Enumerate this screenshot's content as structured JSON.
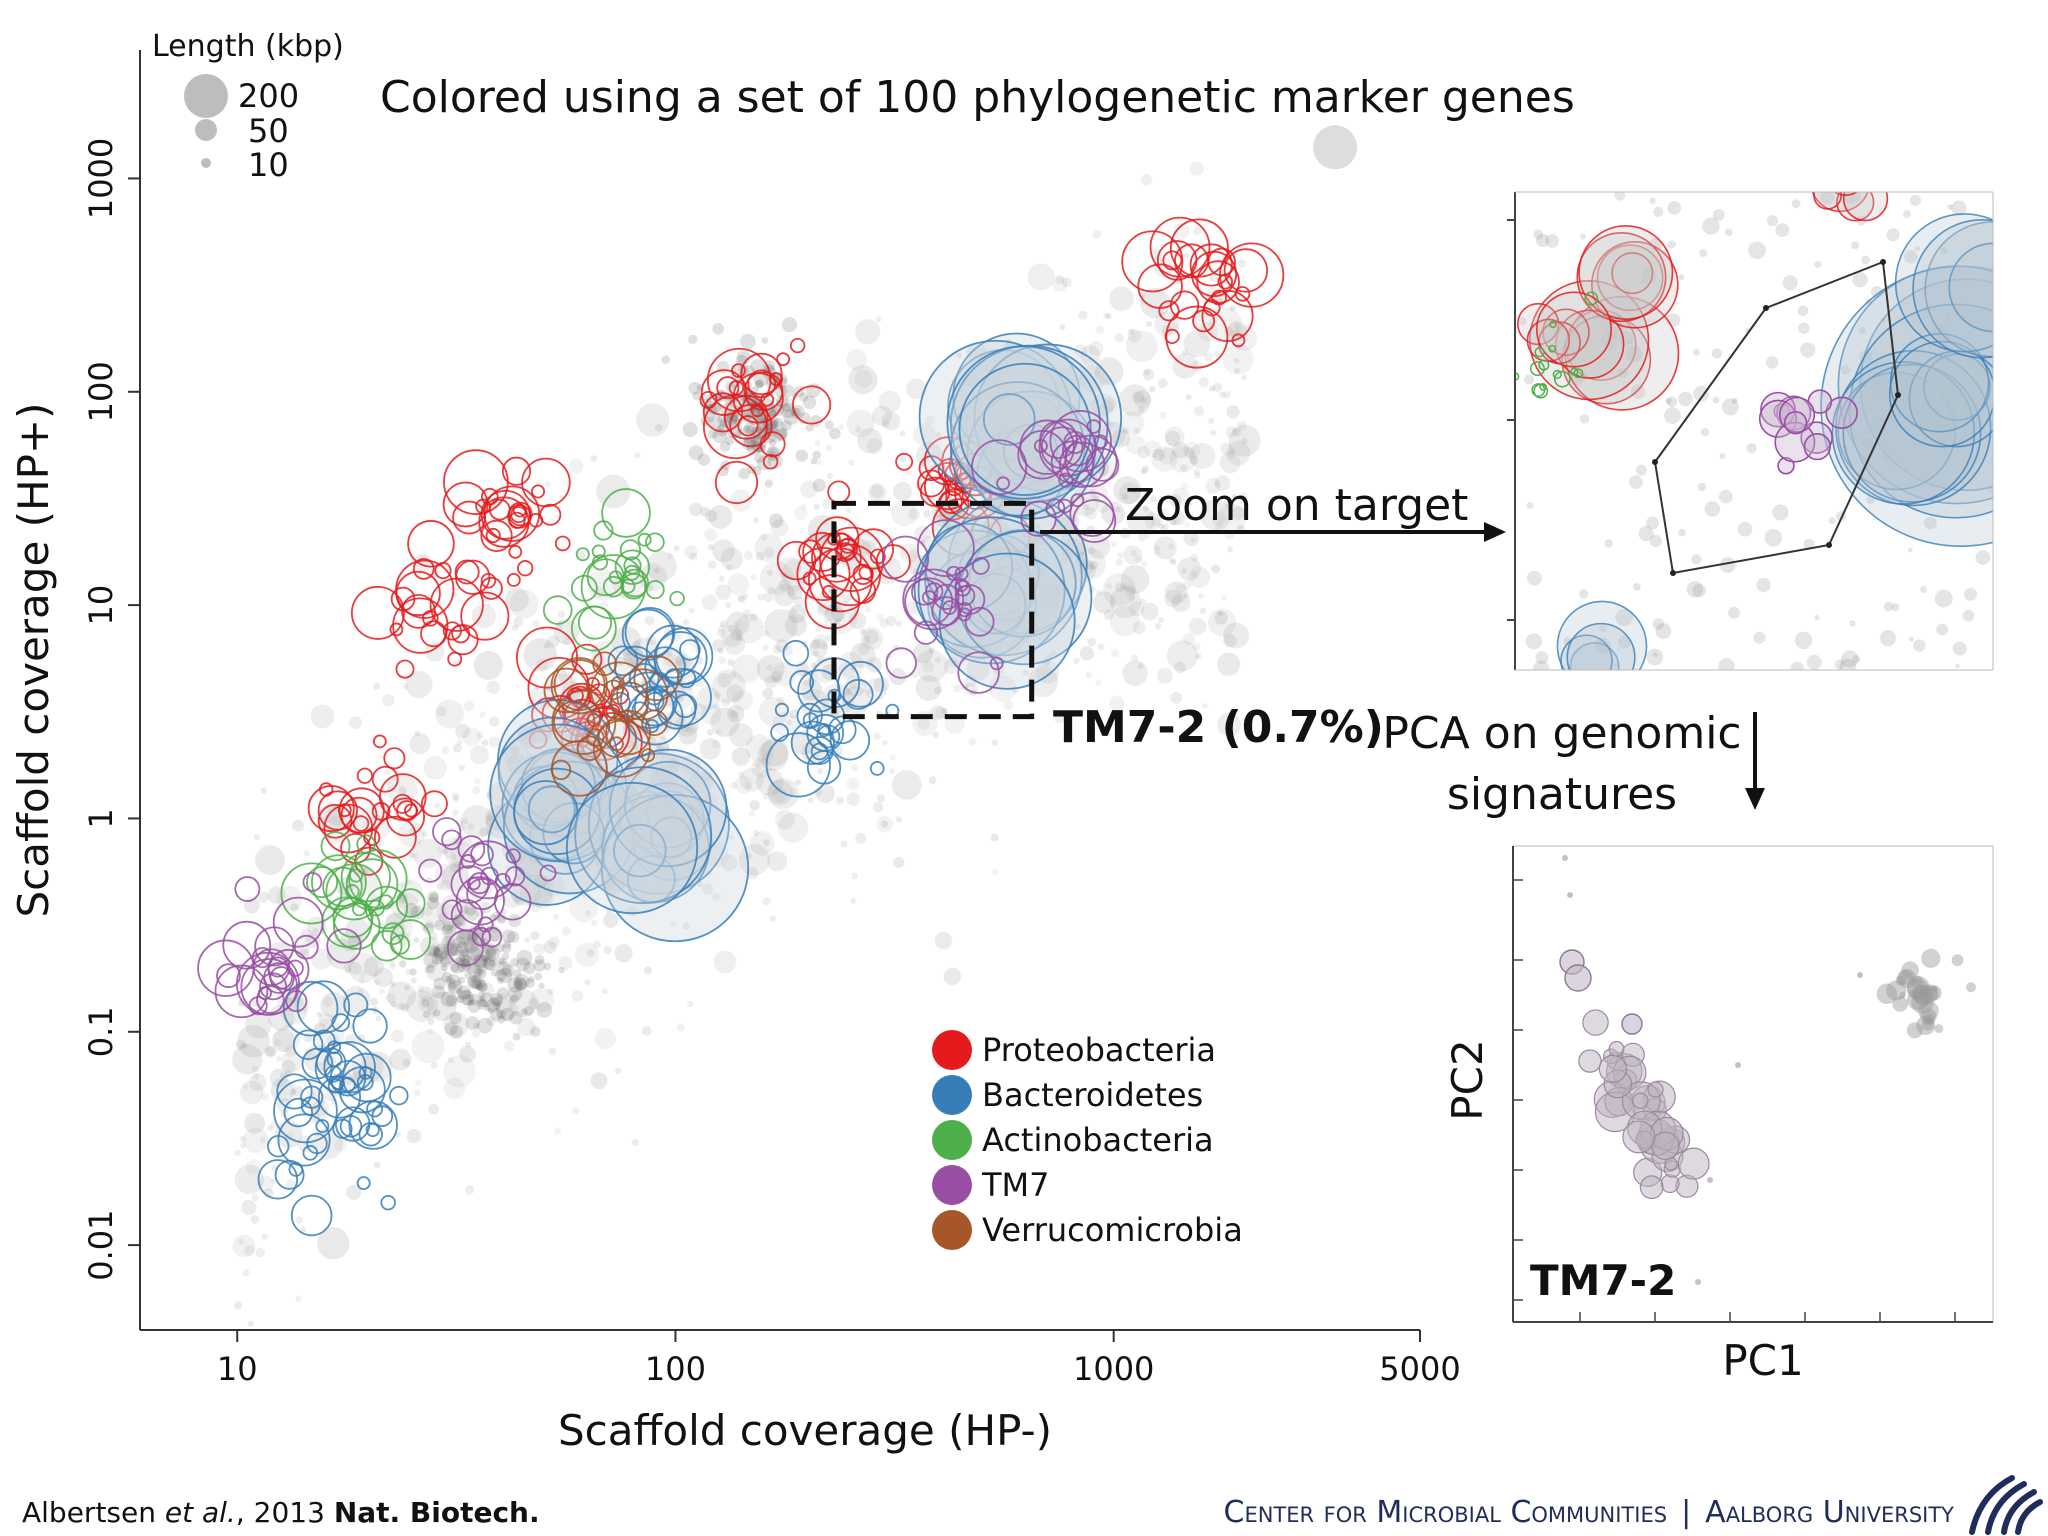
{
  "slide": {
    "heading": "Colored using a set of 100 phylogenetic marker genes",
    "zoom_label": "Zoom on target",
    "target_label": "TM7-2 (0.7%)",
    "pca_label_line1": "PCA on genomic",
    "pca_label_line2": "signatures",
    "citation_author": "Albertsen ",
    "citation_etal": "et al.",
    "citation_year": ", 2013 ",
    "citation_journal": "Nat. Biotech.",
    "footer_center": "Center for Microbial Communities",
    "footer_sep": "|",
    "footer_univ": "Aalborg University",
    "logo_icon": "aalborg-university-wave-logo"
  },
  "colors": {
    "Proteobacteria": "#e41a1c",
    "Bacteroidetes": "#377eb8",
    "Actinobacteria": "#4daf4a",
    "TM7": "#984ea3",
    "Verrucomicrobia": "#a65628",
    "background": "#9a9a9a",
    "footer_text": "#1f2d5a"
  },
  "chart_data": [
    {
      "type": "scatter",
      "xlabel": "Scaffold coverage (HP-)",
      "ylabel": "Scaffold coverage (HP+)",
      "x_scale": "log",
      "y_scale": "log",
      "xlim": [
        6,
        5000
      ],
      "ylim": [
        0.004,
        4000
      ],
      "x_ticks": [
        10,
        100,
        1000,
        5000
      ],
      "x_tick_labels": [
        "10",
        "100",
        "1000",
        "5000"
      ],
      "y_ticks": [
        0.01,
        0.1,
        1,
        10,
        100,
        1000
      ],
      "y_tick_labels": [
        "0.01",
        "0.1",
        "1",
        "10",
        "100",
        "1000"
      ],
      "size_legend": {
        "title": "Length (kbp)",
        "entries": [
          {
            "label": "200",
            "value": 200
          },
          {
            "label": "50",
            "value": 50
          },
          {
            "label": "10",
            "value": 10
          }
        ]
      },
      "legend": [
        "Proteobacteria",
        "Bacteroidetes",
        "Actinobacteria",
        "TM7",
        "Verrucomicrobia"
      ],
      "legend_position": "bottom-right",
      "clusters": [
        {
          "group": "Proteobacteria",
          "x": 1600,
          "y": 300
        },
        {
          "group": "Proteobacteria",
          "x": 250,
          "y": 16
        },
        {
          "group": "Proteobacteria",
          "x": 150,
          "y": 80
        },
        {
          "group": "Proteobacteria",
          "x": 450,
          "y": 40
        },
        {
          "group": "Proteobacteria",
          "x": 30,
          "y": 10
        },
        {
          "group": "Proteobacteria",
          "x": 60,
          "y": 3
        },
        {
          "group": "Proteobacteria",
          "x": 20,
          "y": 1.2
        },
        {
          "group": "Proteobacteria",
          "x": 45,
          "y": 25
        },
        {
          "group": "Bacteroidetes",
          "x": 550,
          "y": 12
        },
        {
          "group": "Bacteroidetes",
          "x": 230,
          "y": 2.8
        },
        {
          "group": "Bacteroidetes",
          "x": 55,
          "y": 1.1
        },
        {
          "group": "Bacteroidetes",
          "x": 90,
          "y": 0.8
        },
        {
          "group": "Bacteroidetes",
          "x": 90,
          "y": 4
        },
        {
          "group": "Bacteroidetes",
          "x": 17,
          "y": 0.07
        },
        {
          "group": "Bacteroidetes",
          "x": 16,
          "y": 0.03
        },
        {
          "group": "Bacteroidetes",
          "x": 600,
          "y": 70
        },
        {
          "group": "Actinobacteria",
          "x": 75,
          "y": 15
        },
        {
          "group": "Actinobacteria",
          "x": 20,
          "y": 0.4
        },
        {
          "group": "TM7",
          "x": 420,
          "y": 10
        },
        {
          "group": "TM7",
          "x": 780,
          "y": 40
        },
        {
          "group": "TM7",
          "x": 35,
          "y": 0.5
        },
        {
          "group": "TM7",
          "x": 12,
          "y": 0.2
        },
        {
          "group": "Verrucomicrobia",
          "x": 75,
          "y": 3
        }
      ],
      "target_box": {
        "x": [
          230,
          650
        ],
        "y": [
          3,
          30
        ]
      }
    },
    {
      "type": "scatter",
      "role": "zoom-inset"
    },
    {
      "type": "scatter",
      "role": "pca-inset",
      "xlabel": "PC1",
      "ylabel": "PC2",
      "label": "TM7-2"
    }
  ]
}
